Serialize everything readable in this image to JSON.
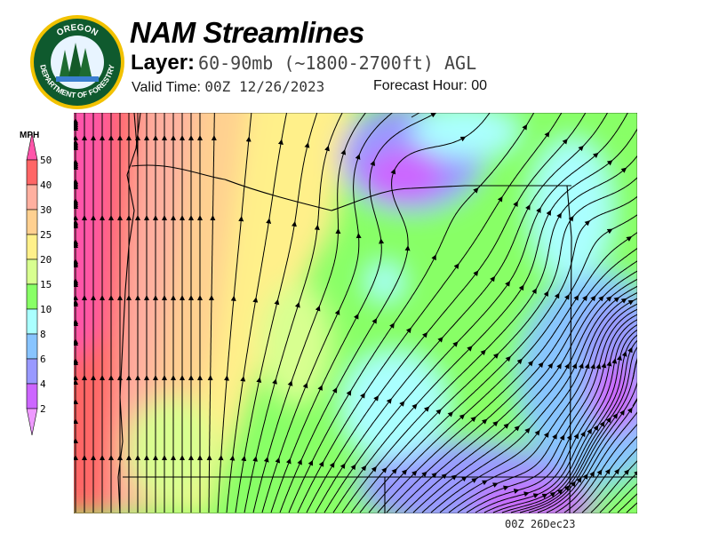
{
  "header": {
    "title": "NAM Streamlines",
    "layer_label": "Layer:",
    "layer_value": "60-90mb (~1800-2700ft) AGL",
    "valid_label": "Valid Time:",
    "valid_value": "00Z 12/26/2023",
    "forecast_label": "Forecast Hour:",
    "forecast_value": "00"
  },
  "logo": {
    "top_text": "OREGON",
    "bottom_text": "DEPARTMENT OF FORESTRY"
  },
  "legend": {
    "unit": "MPH",
    "levels": [
      "50",
      "40",
      "30",
      "25",
      "20",
      "15",
      "10",
      "8",
      "6",
      "4",
      "2"
    ],
    "colors": [
      "#ff55aa",
      "#ff6666",
      "#ffb0a0",
      "#ffd090",
      "#fff08a",
      "#d8ff90",
      "#88ff66",
      "#aaffff",
      "#88c4ff",
      "#9999ff",
      "#cc66ff",
      "#ee99ff"
    ]
  },
  "footer": {
    "timestamp": "00Z 26Dec23"
  }
}
